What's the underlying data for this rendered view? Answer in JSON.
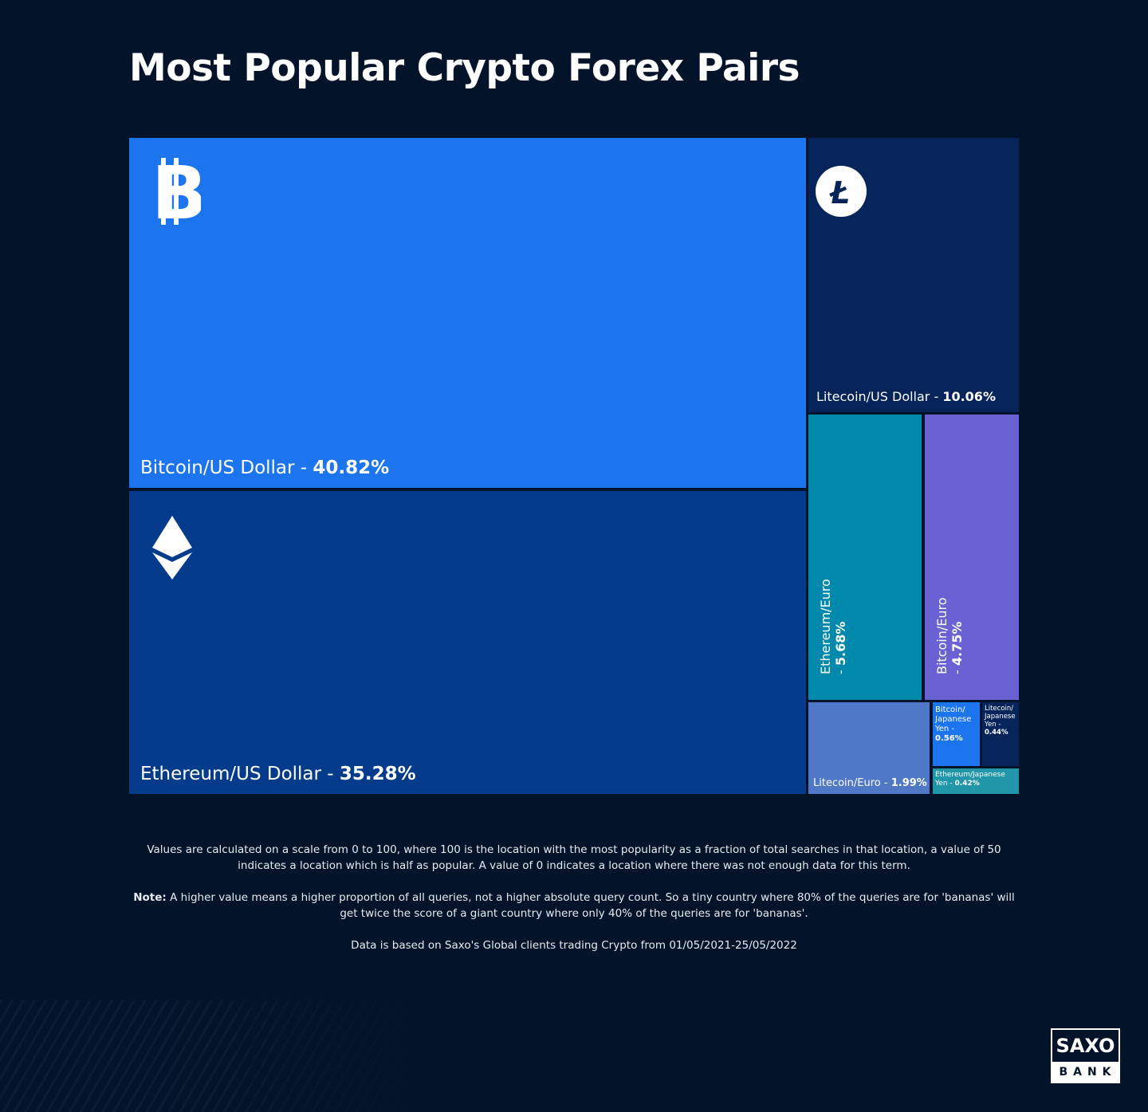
{
  "title": "Most Popular Crypto Forex Pairs",
  "chart_data": {
    "type": "treemap",
    "title": "Most Popular Crypto Forex Pairs",
    "unit": "%",
    "items": [
      {
        "name": "Bitcoin/US Dollar",
        "value": 40.82,
        "value_label": "40.82%",
        "color": "#1c74ee",
        "icon": "bitcoin-icon"
      },
      {
        "name": "Ethereum/US Dollar",
        "value": 35.28,
        "value_label": "35.28%",
        "color": "#043b8a",
        "icon": "ethereum-icon"
      },
      {
        "name": "Litecoin/US Dollar",
        "value": 10.06,
        "value_label": "10.06%",
        "color": "#05245a",
        "icon": "litecoin-icon"
      },
      {
        "name": "Ethereum/Euro",
        "value": 5.68,
        "value_label": "5.68%",
        "color": "#0088ad"
      },
      {
        "name": "Bitcoin/Euro",
        "value": 4.75,
        "value_label": "4.75%",
        "color": "#6a62d4"
      },
      {
        "name": "Litecoin/Euro",
        "value": 1.99,
        "value_label": "1.99%",
        "color": "#4f78c6"
      },
      {
        "name": "Bitcoin/Japanese Yen",
        "value": 0.56,
        "value_label": "0.56%",
        "color": "#1c74ee"
      },
      {
        "name": "Litecoin/Japanese Yen",
        "value": 0.44,
        "value_label": "0.44%",
        "color": "#05245a"
      },
      {
        "name": "Ethereum/Japanese Yen",
        "value": 0.42,
        "value_label": "0.42%",
        "color": "#2196a9"
      }
    ]
  },
  "notes": {
    "p1": "Values are calculated on a scale from 0 to 100, where 100 is the location with the most popularity as a fraction of total searches in that location, a value of 50 indicates a location which is half as popular. A value of 0 indicates a location where there was not enough data for this term.",
    "note_label": "Note:",
    "p2": " A higher value means a higher proportion of all queries, not a higher absolute query count. So a tiny country where 80% of the queries are for 'bananas' will get twice the score of a giant country where only 40% of the queries are for 'bananas'.",
    "p3": "Data is based on Saxo's Global clients trading Crypto from 01/05/2021-25/05/2022"
  },
  "logo": {
    "top": "SAXO",
    "bottom": "BANK"
  }
}
